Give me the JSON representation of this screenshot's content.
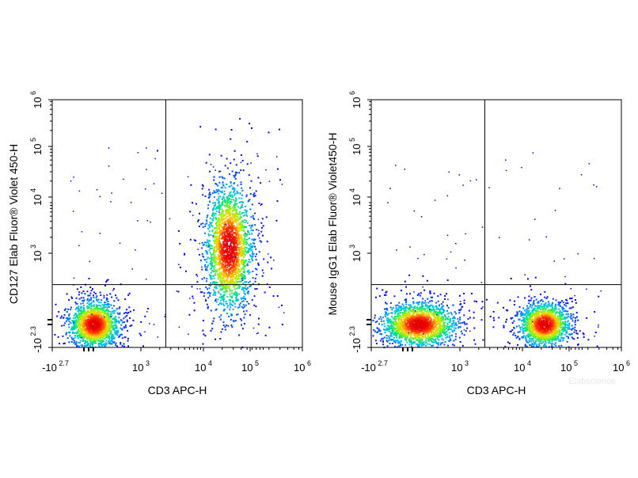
{
  "chart_data": [
    {
      "type": "scatter",
      "xlabel": "CD3 APC-H",
      "ylabel": "CD127 Elab Fluor® Violet 450-H",
      "x_ticks": [
        {
          "base": "-10",
          "exp": "2.7"
        },
        {
          "base": "10",
          "exp": "3"
        },
        {
          "base": "10",
          "exp": "4"
        },
        {
          "base": "10",
          "exp": "5"
        },
        {
          "base": "10",
          "exp": "6"
        }
      ],
      "y_ticks": [
        {
          "base": "-10",
          "exp": "2.3"
        },
        {
          "base": "10",
          "exp": "3"
        },
        {
          "base": "10",
          "exp": "4"
        },
        {
          "base": "10",
          "exp": "5"
        },
        {
          "base": "10",
          "exp": "6"
        }
      ],
      "gate": {
        "x": 2500,
        "y": 600
      },
      "populations": [
        {
          "center_x": 200,
          "center_y": 100,
          "description": "CD3- CD127- cells",
          "color_peak": "#ff3300"
        },
        {
          "center_x": 25000,
          "center_y": 1300,
          "description": "CD3+ CD127+ cells",
          "color_peak": "#ff0000"
        }
      ],
      "quadrants": [
        "Q1 upper-left",
        "Q2 upper-right",
        "Q3 lower-right",
        "Q4 lower-left"
      ]
    },
    {
      "type": "scatter",
      "xlabel": "CD3 APC-H",
      "ylabel": "Mouse IgG1 Elab Fluor® Violet450-H",
      "x_ticks": [
        {
          "base": "-10",
          "exp": "2.7"
        },
        {
          "base": "10",
          "exp": "3"
        },
        {
          "base": "10",
          "exp": "4"
        },
        {
          "base": "10",
          "exp": "5"
        },
        {
          "base": "10",
          "exp": "6"
        }
      ],
      "y_ticks": [
        {
          "base": "-10",
          "exp": "2.3"
        },
        {
          "base": "10",
          "exp": "3"
        },
        {
          "base": "10",
          "exp": "4"
        },
        {
          "base": "10",
          "exp": "5"
        },
        {
          "base": "10",
          "exp": "6"
        }
      ],
      "gate": {
        "x": 2500,
        "y": 600
      },
      "populations": [
        {
          "center_x": 300,
          "center_y": 100,
          "description": "CD3- isotype-negative cells",
          "color_peak": "#66ff33"
        },
        {
          "center_x": 22000,
          "center_y": 100,
          "description": "CD3+ isotype-negative cells",
          "color_peak": "#ff0000"
        }
      ]
    }
  ],
  "watermark": "Elabscience",
  "colors": {
    "axis": "#000000",
    "low_density": "#0000ff",
    "high_density": "#ff0000"
  }
}
